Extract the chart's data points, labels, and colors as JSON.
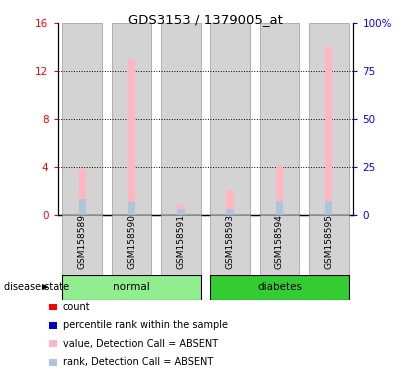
{
  "title": "GDS3153 / 1379005_at",
  "samples": [
    "GSM158589",
    "GSM158590",
    "GSM158591",
    "GSM158593",
    "GSM158594",
    "GSM158595"
  ],
  "ylim_left": [
    0,
    16
  ],
  "ylim_right": [
    0,
    100
  ],
  "yticks_left": [
    0,
    4,
    8,
    12,
    16
  ],
  "yticks_right": [
    0,
    25,
    50,
    75,
    100
  ],
  "ytick_labels_left": [
    "0",
    "4",
    "8",
    "12",
    "16"
  ],
  "ytick_labels_right": [
    "0",
    "25",
    "50",
    "75",
    "100%"
  ],
  "value_absent": [
    3.8,
    13.0,
    0.8,
    2.1,
    4.2,
    14.0
  ],
  "rank_absent": [
    1.3,
    1.1,
    0.5,
    0.5,
    1.2,
    1.2
  ],
  "bar_bg_color": "#d3d3d3",
  "value_absent_color": "#ffb6c1",
  "rank_absent_color": "#b0c4de",
  "count_color": "#ff0000",
  "percentile_color": "#0000ff",
  "group_ranges": [
    {
      "start": 0,
      "end": 2,
      "label": "normal",
      "color": "#90ee90"
    },
    {
      "start": 3,
      "end": 5,
      "label": "diabetes",
      "color": "#33cc33"
    }
  ],
  "bar_width": 0.8,
  "thin_bar_width": 0.15,
  "dotted_lines": [
    4,
    8,
    12
  ],
  "disease_state_label": "disease state",
  "legend_items": [
    {
      "label": "count",
      "color": "#ff0000"
    },
    {
      "label": "percentile rank within the sample",
      "color": "#0000cc"
    },
    {
      "label": "value, Detection Call = ABSENT",
      "color": "#ffb6c1"
    },
    {
      "label": "rank, Detection Call = ABSENT",
      "color": "#b0c4de"
    }
  ]
}
